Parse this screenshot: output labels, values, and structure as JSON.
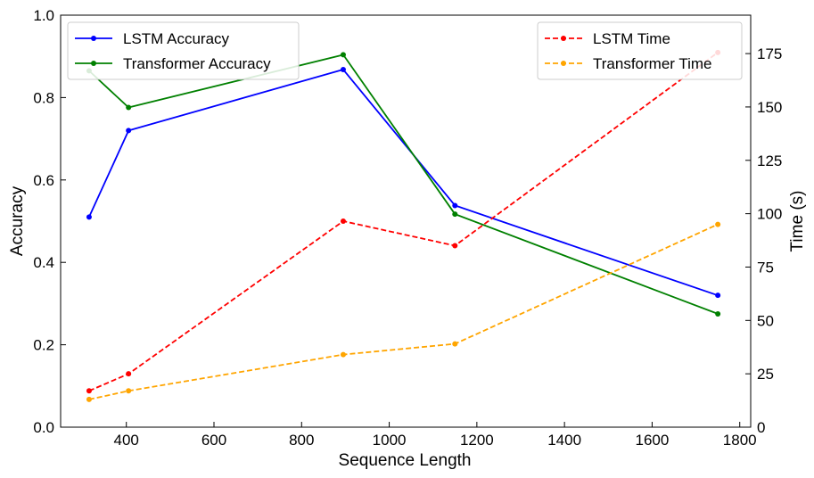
{
  "chart_data": {
    "type": "line",
    "title": "",
    "xlabel": "Sequence Length",
    "ylabel_left": "Accuracy",
    "ylabel_right": "Time (s)",
    "xlim": [
      250,
      1825
    ],
    "ylim_left": [
      0.0,
      1.0
    ],
    "ylim_right": [
      0,
      193
    ],
    "x_ticks": [
      400,
      600,
      800,
      1000,
      1200,
      1400,
      1600,
      1800
    ],
    "y_ticks_left": [
      "0.0",
      "0.2",
      "0.4",
      "0.6",
      "0.8",
      "1.0"
    ],
    "y_ticks_right": [
      0,
      25,
      50,
      75,
      100,
      125,
      150,
      175
    ],
    "x": [
      315,
      405,
      895,
      1150,
      1750
    ],
    "series_left": [
      {
        "name": "LSTM Accuracy",
        "color": "#0000ff",
        "style": "solid",
        "values": [
          0.51,
          0.72,
          0.868,
          0.538,
          0.32
        ]
      },
      {
        "name": "Transformer Accuracy",
        "color": "#008000",
        "style": "solid",
        "values": [
          0.865,
          0.776,
          0.904,
          0.517,
          0.275
        ]
      }
    ],
    "series_right": [
      {
        "name": "LSTM Time",
        "color": "#ff0000",
        "style": "dashed",
        "values": [
          17,
          25,
          96.5,
          85,
          175.5
        ]
      },
      {
        "name": "Transformer Time",
        "color": "#ffa500",
        "style": "dashed",
        "values": [
          13,
          17,
          34,
          39,
          95
        ]
      }
    ],
    "legend_left_position": "top-left",
    "legend_right_position": "top-right",
    "grid": false
  }
}
